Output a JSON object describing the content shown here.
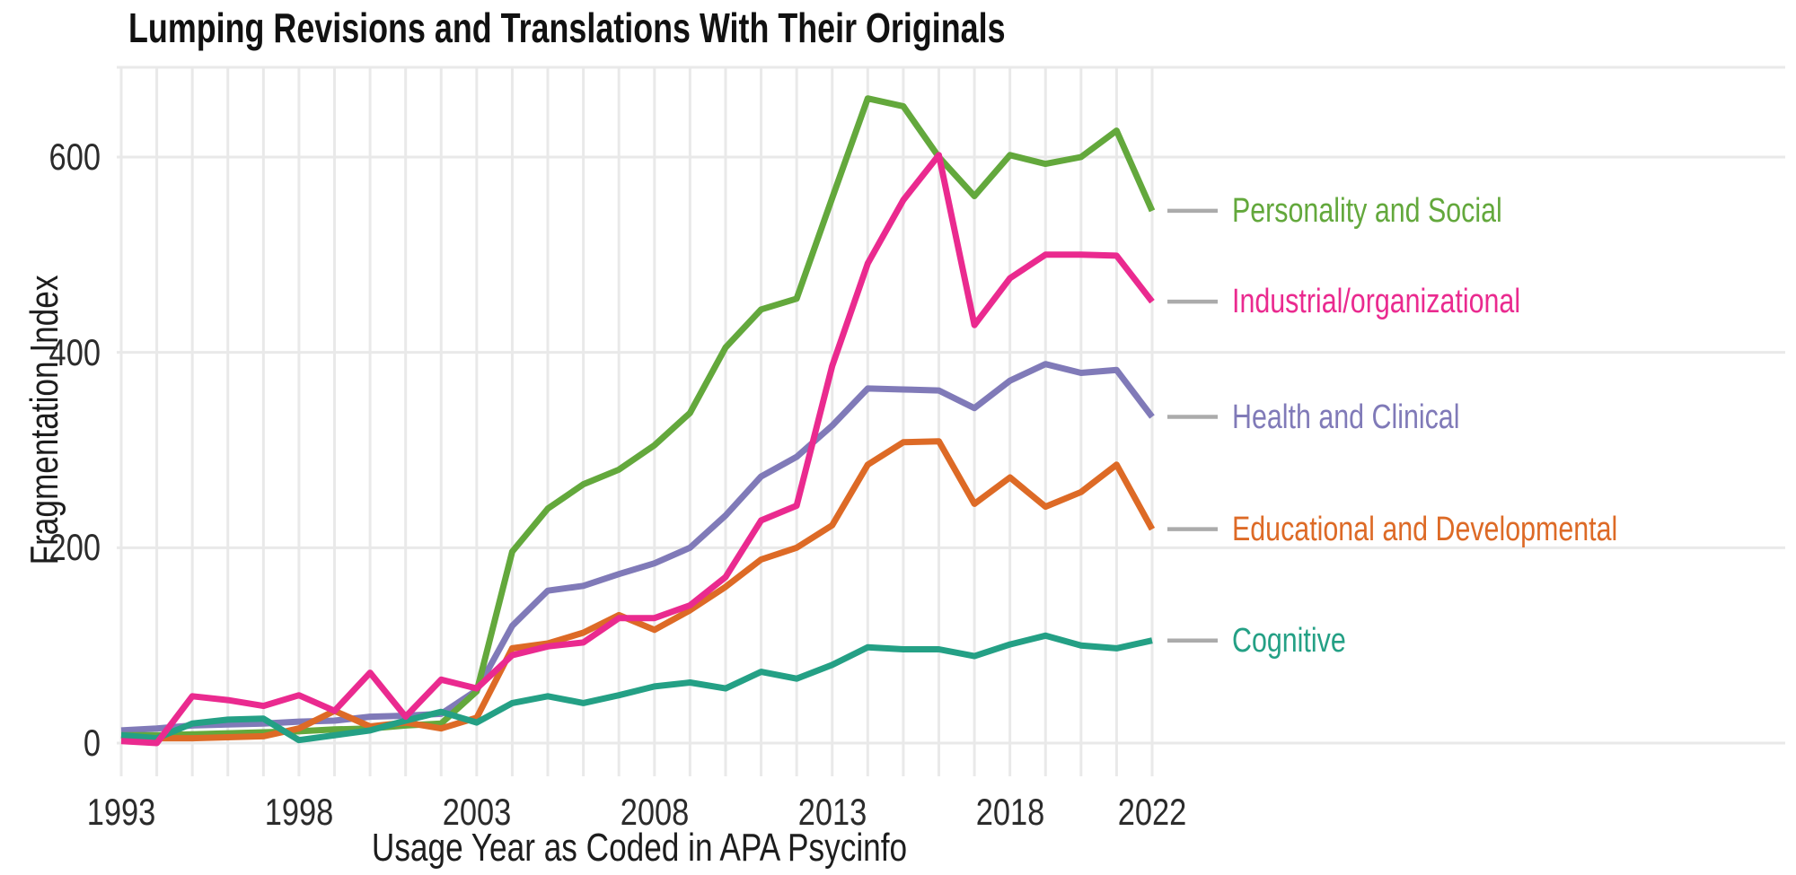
{
  "page": {
    "background": "#FFFFFF"
  },
  "chart_data": {
    "type": "line",
    "title": "Lumping Revisions and Translations With Their Originals",
    "xlabel": "Usage Year as Coded in APA Psycinfo",
    "ylabel": "Fragmentation Index",
    "x": [
      1993,
      1994,
      1995,
      1996,
      1997,
      1998,
      1999,
      2000,
      2001,
      2002,
      2003,
      2004,
      2005,
      2006,
      2007,
      2008,
      2009,
      2010,
      2011,
      2012,
      2013,
      2014,
      2015,
      2016,
      2017,
      2018,
      2019,
      2020,
      2021,
      2022
    ],
    "xticks": [
      1993,
      1998,
      2003,
      2008,
      2013,
      2018,
      2022
    ],
    "yticks": [
      0,
      200,
      400,
      600
    ],
    "xlim": [
      1993,
      2022
    ],
    "ylim": [
      0,
      690
    ],
    "grid": true,
    "grid_color": "#E9E9E9",
    "legend_position": "right, aligned to line endpoints",
    "legend_tick_color": "#ABABAB",
    "axis_text_color": "#2B2B2B",
    "series": [
      {
        "name": "Personality and Social",
        "color": "#63A83C",
        "values": [
          8,
          8,
          9,
          10,
          11,
          12,
          14,
          15,
          18,
          20,
          53,
          196,
          240,
          265,
          280,
          305,
          338,
          405,
          444,
          455,
          558,
          660,
          652,
          600,
          560,
          602,
          593,
          600,
          627,
          545
        ]
      },
      {
        "name": "Industrial/organizational",
        "color": "#EA2A8F",
        "values": [
          2,
          0,
          48,
          44,
          38,
          49,
          33,
          72,
          27,
          65,
          56,
          90,
          99,
          103,
          128,
          128,
          141,
          170,
          228,
          243,
          386,
          491,
          556,
          602,
          428,
          476,
          500,
          500,
          499,
          452
        ]
      },
      {
        "name": "Health and Clinical",
        "color": "#807AB8",
        "values": [
          13,
          15,
          18,
          19,
          20,
          22,
          23,
          27,
          28,
          30,
          54,
          120,
          156,
          161,
          173,
          184,
          200,
          233,
          273,
          293,
          325,
          363,
          362,
          361,
          343,
          371,
          388,
          379,
          382,
          334
        ]
      },
      {
        "name": "Educational and Developmental",
        "color": "#DD6A26",
        "values": [
          5,
          5,
          5,
          6,
          7,
          15,
          33,
          17,
          21,
          15,
          26,
          97,
          102,
          113,
          131,
          116,
          136,
          160,
          188,
          200,
          223,
          285,
          308,
          309,
          245,
          272,
          242,
          257,
          285,
          219
        ]
      },
      {
        "name": "Cognitive",
        "color": "#24A085",
        "values": [
          8,
          5,
          20,
          24,
          25,
          3,
          8,
          13,
          23,
          32,
          21,
          41,
          48,
          41,
          49,
          58,
          62,
          56,
          73,
          66,
          80,
          98,
          96,
          96,
          89,
          101,
          110,
          100,
          97,
          105
        ]
      }
    ]
  }
}
